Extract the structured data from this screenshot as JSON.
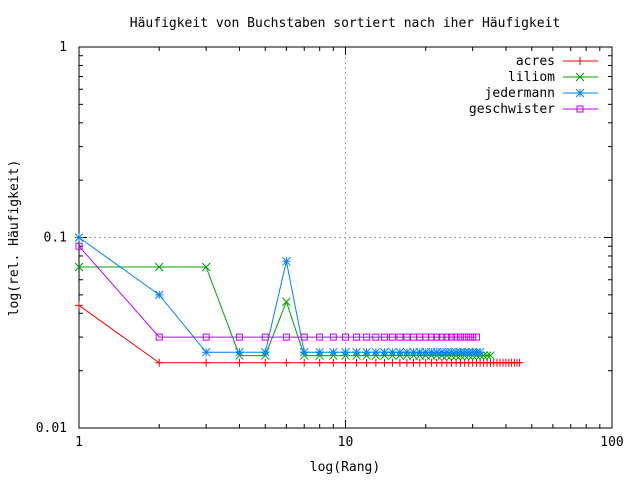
{
  "chart_data": {
    "type": "line",
    "title": "Häufigkeit von Buchstaben sortiert nach iher Häufigkeit",
    "xlabel": "log(Rang)",
    "ylabel": "log(rel. Häufigkeit)",
    "xscale": "log",
    "yscale": "log",
    "xlim": [
      1,
      100
    ],
    "ylim": [
      0.01,
      1
    ],
    "x_ticks": [
      {
        "value": 1,
        "label": "1"
      },
      {
        "value": 10,
        "label": "10"
      },
      {
        "value": 100,
        "label": "100"
      }
    ],
    "y_ticks": [
      {
        "value": 0.01,
        "label": "0.01"
      },
      {
        "value": 0.1,
        "label": "0.1"
      },
      {
        "value": 1,
        "label": "1"
      }
    ],
    "grid": true,
    "legend_position": "top-right",
    "series": [
      {
        "name": "acres",
        "color": "#ff0000",
        "marker": "plus",
        "points": [
          [
            1,
            0.044
          ],
          [
            2,
            0.022
          ],
          [
            3,
            0.022
          ],
          [
            4,
            0.022
          ],
          [
            5,
            0.022
          ],
          [
            6,
            0.022
          ],
          [
            7,
            0.022
          ],
          [
            8,
            0.022
          ],
          [
            9,
            0.022
          ],
          [
            10,
            0.022
          ],
          [
            11,
            0.022
          ],
          [
            12,
            0.022
          ],
          [
            13,
            0.022
          ],
          [
            14,
            0.022
          ],
          [
            15,
            0.022
          ],
          [
            16,
            0.022
          ],
          [
            17,
            0.022
          ],
          [
            18,
            0.022
          ],
          [
            19,
            0.022
          ],
          [
            20,
            0.022
          ],
          [
            21,
            0.022
          ],
          [
            22,
            0.022
          ],
          [
            23,
            0.022
          ],
          [
            24,
            0.022
          ],
          [
            25,
            0.022
          ],
          [
            26,
            0.022
          ],
          [
            27,
            0.022
          ],
          [
            28,
            0.022
          ],
          [
            29,
            0.022
          ],
          [
            30,
            0.022
          ],
          [
            31,
            0.022
          ],
          [
            32,
            0.022
          ],
          [
            33,
            0.022
          ],
          [
            34,
            0.022
          ],
          [
            35,
            0.022
          ],
          [
            36,
            0.022
          ],
          [
            37,
            0.022
          ],
          [
            38,
            0.022
          ],
          [
            39,
            0.022
          ],
          [
            40,
            0.022
          ],
          [
            41,
            0.022
          ],
          [
            42,
            0.022
          ],
          [
            43,
            0.022
          ],
          [
            44,
            0.022
          ],
          [
            45,
            0.022
          ]
        ]
      },
      {
        "name": "liliom",
        "color": "#00a000",
        "marker": "cross",
        "points": [
          [
            1,
            0.07
          ],
          [
            2,
            0.07
          ],
          [
            3,
            0.07
          ],
          [
            4,
            0.024
          ],
          [
            5,
            0.024
          ],
          [
            6,
            0.046
          ],
          [
            7,
            0.024
          ],
          [
            8,
            0.024
          ],
          [
            9,
            0.024
          ],
          [
            10,
            0.024
          ],
          [
            11,
            0.024
          ],
          [
            12,
            0.024
          ],
          [
            13,
            0.024
          ],
          [
            14,
            0.024
          ],
          [
            15,
            0.024
          ],
          [
            16,
            0.024
          ],
          [
            17,
            0.024
          ],
          [
            18,
            0.024
          ],
          [
            19,
            0.024
          ],
          [
            20,
            0.024
          ],
          [
            21,
            0.024
          ],
          [
            22,
            0.024
          ],
          [
            23,
            0.024
          ],
          [
            24,
            0.024
          ],
          [
            25,
            0.024
          ],
          [
            26,
            0.024
          ],
          [
            27,
            0.024
          ],
          [
            28,
            0.024
          ],
          [
            29,
            0.024
          ],
          [
            30,
            0.024
          ],
          [
            31,
            0.024
          ],
          [
            32,
            0.024
          ],
          [
            33,
            0.024
          ],
          [
            34,
            0.024
          ],
          [
            35,
            0.024
          ]
        ]
      },
      {
        "name": "jedermann",
        "color": "#0080ff",
        "marker": "star",
        "points": [
          [
            1,
            0.1
          ],
          [
            2,
            0.05
          ],
          [
            3,
            0.025
          ],
          [
            4,
            0.025
          ],
          [
            5,
            0.025
          ],
          [
            6,
            0.075
          ],
          [
            7,
            0.025
          ],
          [
            8,
            0.025
          ],
          [
            9,
            0.025
          ],
          [
            10,
            0.025
          ],
          [
            11,
            0.025
          ],
          [
            12,
            0.025
          ],
          [
            13,
            0.025
          ],
          [
            14,
            0.025
          ],
          [
            15,
            0.025
          ],
          [
            16,
            0.025
          ],
          [
            17,
            0.025
          ],
          [
            18,
            0.025
          ],
          [
            19,
            0.025
          ],
          [
            20,
            0.025
          ],
          [
            21,
            0.025
          ],
          [
            22,
            0.025
          ],
          [
            23,
            0.025
          ],
          [
            24,
            0.025
          ],
          [
            25,
            0.025
          ],
          [
            26,
            0.025
          ],
          [
            27,
            0.025
          ],
          [
            28,
            0.025
          ],
          [
            29,
            0.025
          ],
          [
            30,
            0.025
          ],
          [
            31,
            0.025
          ],
          [
            32,
            0.025
          ]
        ]
      },
      {
        "name": "geschwister",
        "color": "#c000ff",
        "marker": "square",
        "points": [
          [
            1,
            0.09
          ],
          [
            2,
            0.03
          ],
          [
            3,
            0.03
          ],
          [
            4,
            0.03
          ],
          [
            5,
            0.03
          ],
          [
            6,
            0.03
          ],
          [
            7,
            0.03
          ],
          [
            8,
            0.03
          ],
          [
            9,
            0.03
          ],
          [
            10,
            0.03
          ],
          [
            11,
            0.03
          ],
          [
            12,
            0.03
          ],
          [
            13,
            0.03
          ],
          [
            14,
            0.03
          ],
          [
            15,
            0.03
          ],
          [
            16,
            0.03
          ],
          [
            17,
            0.03
          ],
          [
            18,
            0.03
          ],
          [
            19,
            0.03
          ],
          [
            20,
            0.03
          ],
          [
            21,
            0.03
          ],
          [
            22,
            0.03
          ],
          [
            23,
            0.03
          ],
          [
            24,
            0.03
          ],
          [
            25,
            0.03
          ],
          [
            26,
            0.03
          ],
          [
            27,
            0.03
          ],
          [
            28,
            0.03
          ],
          [
            29,
            0.03
          ],
          [
            30,
            0.03
          ],
          [
            31,
            0.03
          ]
        ]
      }
    ]
  }
}
